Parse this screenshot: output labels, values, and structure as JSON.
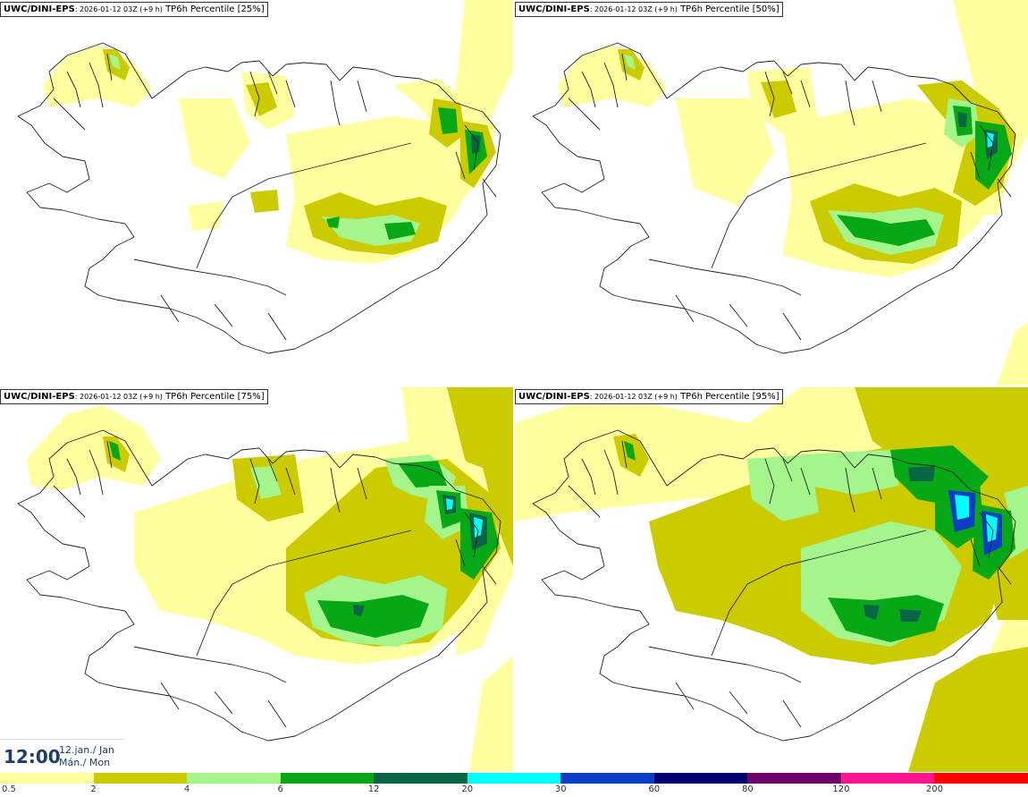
{
  "panels": [
    {
      "source": "UWC/DINI-EPS",
      "run": ": 2026-01-12 03Z (+9 h)",
      "field": " TP6h Percentile [25%]"
    },
    {
      "source": "UWC/DINI-EPS",
      "run": ": 2026-01-12 03Z (+9 h)",
      "field": " TP6h Percentile [50%]"
    },
    {
      "source": "UWC/DINI-EPS",
      "run": ": 2026-01-12 03Z (+9 h)",
      "field": " TP6h Percentile [75%]"
    },
    {
      "source": "UWC/DINI-EPS",
      "run": ": 2026-01-12 03Z (+9 h)",
      "field": " TP6h Percentile [95%]"
    }
  ],
  "valid_time": {
    "time": "12:00",
    "date_line1": "12.jan./ Jan",
    "date_line2": "Mán./ Mon"
  },
  "legend": {
    "labels": [
      "0.5",
      "2",
      "4",
      "6",
      "12",
      "20",
      "30",
      "60",
      "80",
      "120",
      "200"
    ],
    "colors": [
      "#ffff9f",
      "#cbcb00",
      "#a3f58c",
      "#06a815",
      "#086645",
      "#00ffff",
      "#0b3ec7",
      "#000073",
      "#6e0069",
      "#ff1493",
      "#ff0000"
    ]
  },
  "colors": {
    "c1": "#ffff9f",
    "c2": "#cbcb00",
    "c3": "#a3f58c",
    "c4": "#06a815",
    "c5": "#086645",
    "c6": "#00ffff",
    "c7": "#0b3ec7"
  }
}
